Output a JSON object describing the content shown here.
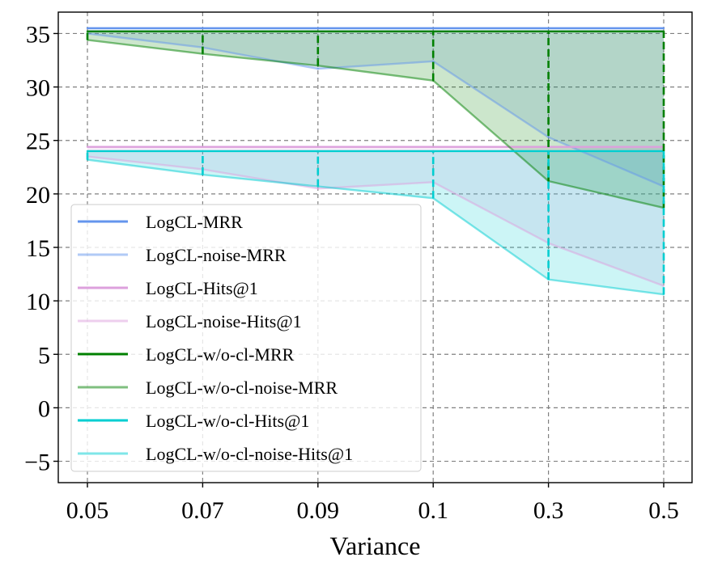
{
  "chart_data": {
    "type": "line",
    "title": "",
    "xlabel": "Variance",
    "ylabel": "",
    "categories": [
      "0.05",
      "0.07",
      "0.09",
      "0.1",
      "0.3",
      "0.5"
    ],
    "ylim": [
      -7,
      37
    ],
    "yticks": [
      -5,
      0,
      5,
      10,
      15,
      20,
      25,
      30,
      35
    ],
    "ytick_labels": [
      "−5",
      "0",
      "5",
      "10",
      "15",
      "20",
      "25",
      "30",
      "35"
    ],
    "grid": true,
    "legend_position": "lower-left",
    "series": [
      {
        "name": "LogCL-MRR",
        "color": "#6495ED",
        "opacity": 1.0,
        "values": [
          35.5,
          35.5,
          35.5,
          35.5,
          35.5,
          35.5
        ]
      },
      {
        "name": "LogCL-noise-MRR",
        "color": "#6495ED",
        "opacity": 0.5,
        "values": [
          35.0,
          33.7,
          31.7,
          32.4,
          25.3,
          20.7
        ]
      },
      {
        "name": "LogCL-Hits@1",
        "color": "#DDA0DD",
        "opacity": 1.0,
        "values": [
          24.4,
          24.4,
          24.4,
          24.4,
          24.4,
          24.4
        ]
      },
      {
        "name": "LogCL-noise-Hits@1",
        "color": "#DDA0DD",
        "opacity": 0.5,
        "values": [
          23.5,
          22.3,
          20.5,
          21.1,
          15.4,
          11.4
        ]
      },
      {
        "name": "LogCL-w/o-cl-MRR",
        "color": "#008000",
        "opacity": 1.0,
        "values": [
          35.2,
          35.2,
          35.2,
          35.2,
          35.2,
          35.2
        ]
      },
      {
        "name": "LogCL-w/o-cl-noise-MRR",
        "color": "#008000",
        "opacity": 0.5,
        "values": [
          34.4,
          33.1,
          32.0,
          30.6,
          21.2,
          18.7
        ]
      },
      {
        "name": "LogCL-w/o-cl-Hits@1",
        "color": "#00CED1",
        "opacity": 1.0,
        "values": [
          24.0,
          24.0,
          24.0,
          24.0,
          24.0,
          24.0
        ]
      },
      {
        "name": "LogCL-w/o-cl-noise-Hits@1",
        "color": "#00CED1",
        "opacity": 0.5,
        "values": [
          23.2,
          21.8,
          20.7,
          19.6,
          12.0,
          10.6
        ]
      }
    ],
    "fills": [
      {
        "between": [
          "LogCL-MRR",
          "LogCL-noise-MRR"
        ],
        "color": "#6495ED",
        "opacity": 0.2
      },
      {
        "between": [
          "LogCL-Hits@1",
          "LogCL-noise-Hits@1"
        ],
        "color": "#DDA0DD",
        "opacity": 0.2
      },
      {
        "between": [
          "LogCL-w/o-cl-MRR",
          "LogCL-w/o-cl-noise-MRR"
        ],
        "color": "#008000",
        "opacity": 0.2
      },
      {
        "between": [
          "LogCL-w/o-cl-Hits@1",
          "LogCL-w/o-cl-noise-Hits@1"
        ],
        "color": "#00CED1",
        "opacity": 0.2
      }
    ],
    "vlines": [
      {
        "from": "LogCL-w/o-cl-noise-MRR",
        "to": "LogCL-w/o-cl-MRR",
        "color": "#008000",
        "style": "dashed"
      },
      {
        "from": "LogCL-w/o-cl-noise-Hits@1",
        "to": "LogCL-w/o-cl-Hits@1",
        "color": "#00CED1",
        "style": "dashed"
      }
    ]
  }
}
